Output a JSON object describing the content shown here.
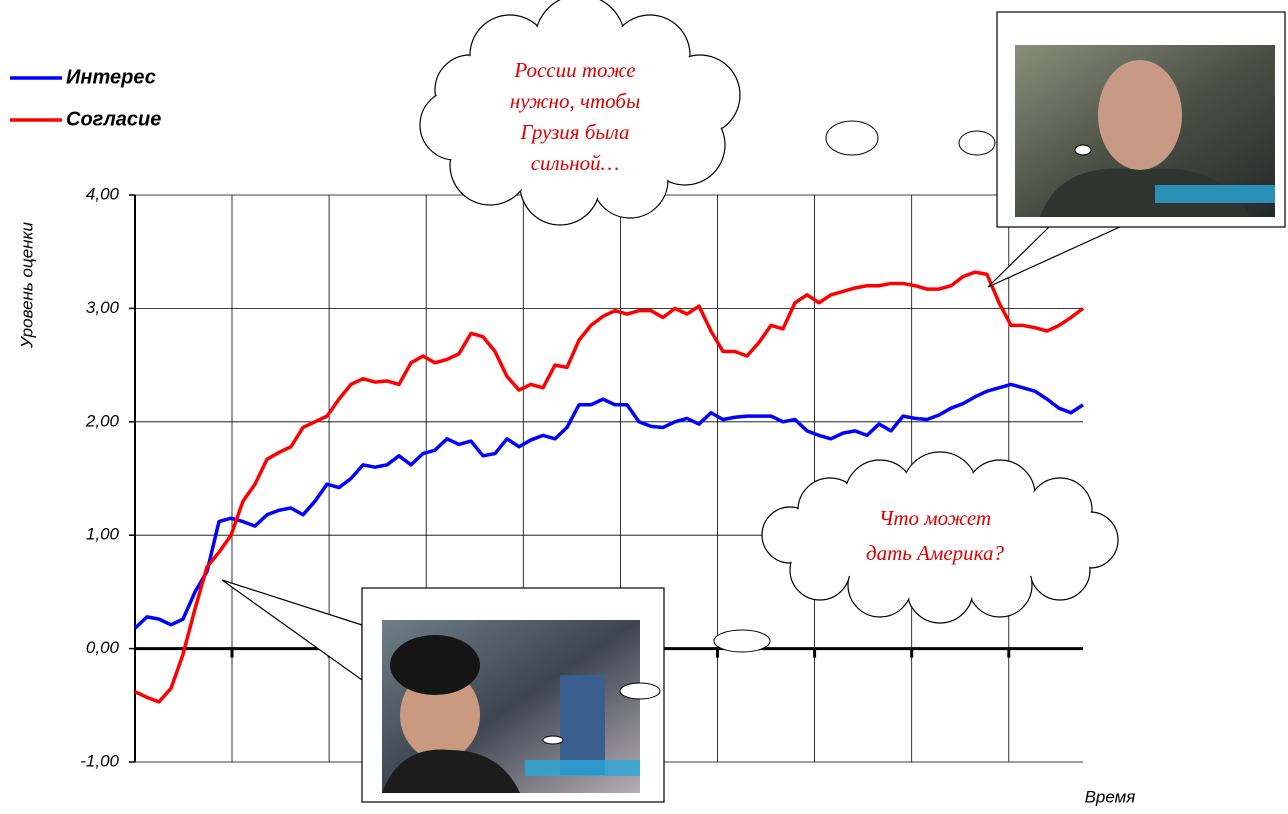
{
  "chart_data": {
    "type": "line",
    "y_label": "Уровень оценки",
    "x_label": "Время",
    "ylim": [
      -1,
      4
    ],
    "yticks": [
      {
        "value": -1,
        "label": "-1,00"
      },
      {
        "value": 0,
        "label": "0,00"
      },
      {
        "value": 1,
        "label": "1,00"
      },
      {
        "value": 2,
        "label": "2,00"
      },
      {
        "value": 3,
        "label": "3,00"
      },
      {
        "value": 4,
        "label": "4,00"
      }
    ],
    "grid": true,
    "legend": "top-left",
    "series": [
      {
        "name": "Интерес",
        "color": "#0000ff",
        "values": [
          0.18,
          0.28,
          0.26,
          0.21,
          0.26,
          0.5,
          0.68,
          1.12,
          1.15,
          1.12,
          1.08,
          1.18,
          1.22,
          1.24,
          1.18,
          1.3,
          1.45,
          1.42,
          1.5,
          1.62,
          1.6,
          1.62,
          1.7,
          1.62,
          1.72,
          1.75,
          1.85,
          1.8,
          1.83,
          1.7,
          1.72,
          1.85,
          1.78,
          1.84,
          1.88,
          1.85,
          1.95,
          2.15,
          2.15,
          2.2,
          2.15,
          2.15,
          2.0,
          1.96,
          1.95,
          2.0,
          2.03,
          1.98,
          2.08,
          2.02,
          2.04,
          2.05,
          2.05,
          2.05,
          2.0,
          2.02,
          1.92,
          1.88,
          1.85,
          1.9,
          1.92,
          1.88,
          1.98,
          1.92,
          2.05,
          2.03,
          2.02,
          2.06,
          2.12,
          2.16,
          2.22,
          2.27,
          2.3,
          2.33,
          2.3,
          2.27,
          2.2,
          2.12,
          2.08,
          2.15
        ]
      },
      {
        "name": "Согласие",
        "color": "#ff0000",
        "values": [
          -0.38,
          -0.43,
          -0.47,
          -0.35,
          -0.05,
          0.35,
          0.72,
          0.85,
          1.0,
          1.3,
          1.45,
          1.67,
          1.73,
          1.78,
          1.95,
          2.0,
          2.05,
          2.2,
          2.33,
          2.38,
          2.35,
          2.36,
          2.33,
          2.52,
          2.58,
          2.52,
          2.55,
          2.6,
          2.78,
          2.75,
          2.62,
          2.4,
          2.28,
          2.33,
          2.3,
          2.5,
          2.48,
          2.72,
          2.85,
          2.93,
          2.98,
          2.95,
          2.98,
          2.98,
          2.92,
          3.0,
          2.95,
          3.02,
          2.8,
          2.62,
          2.62,
          2.58,
          2.7,
          2.85,
          2.82,
          3.05,
          3.12,
          3.05,
          3.12,
          3.15,
          3.18,
          3.2,
          3.2,
          3.22,
          3.22,
          3.2,
          3.17,
          3.17,
          3.2,
          3.28,
          3.32,
          3.3,
          3.05,
          2.85,
          2.85,
          2.83,
          2.8,
          2.85,
          2.92,
          3.0
        ]
      }
    ],
    "annotations": [
      [
        "России тоже",
        "нужно, чтобы",
        "Грузия была",
        "сильной…"
      ],
      [
        "Что может",
        "дать Америка?"
      ]
    ]
  }
}
